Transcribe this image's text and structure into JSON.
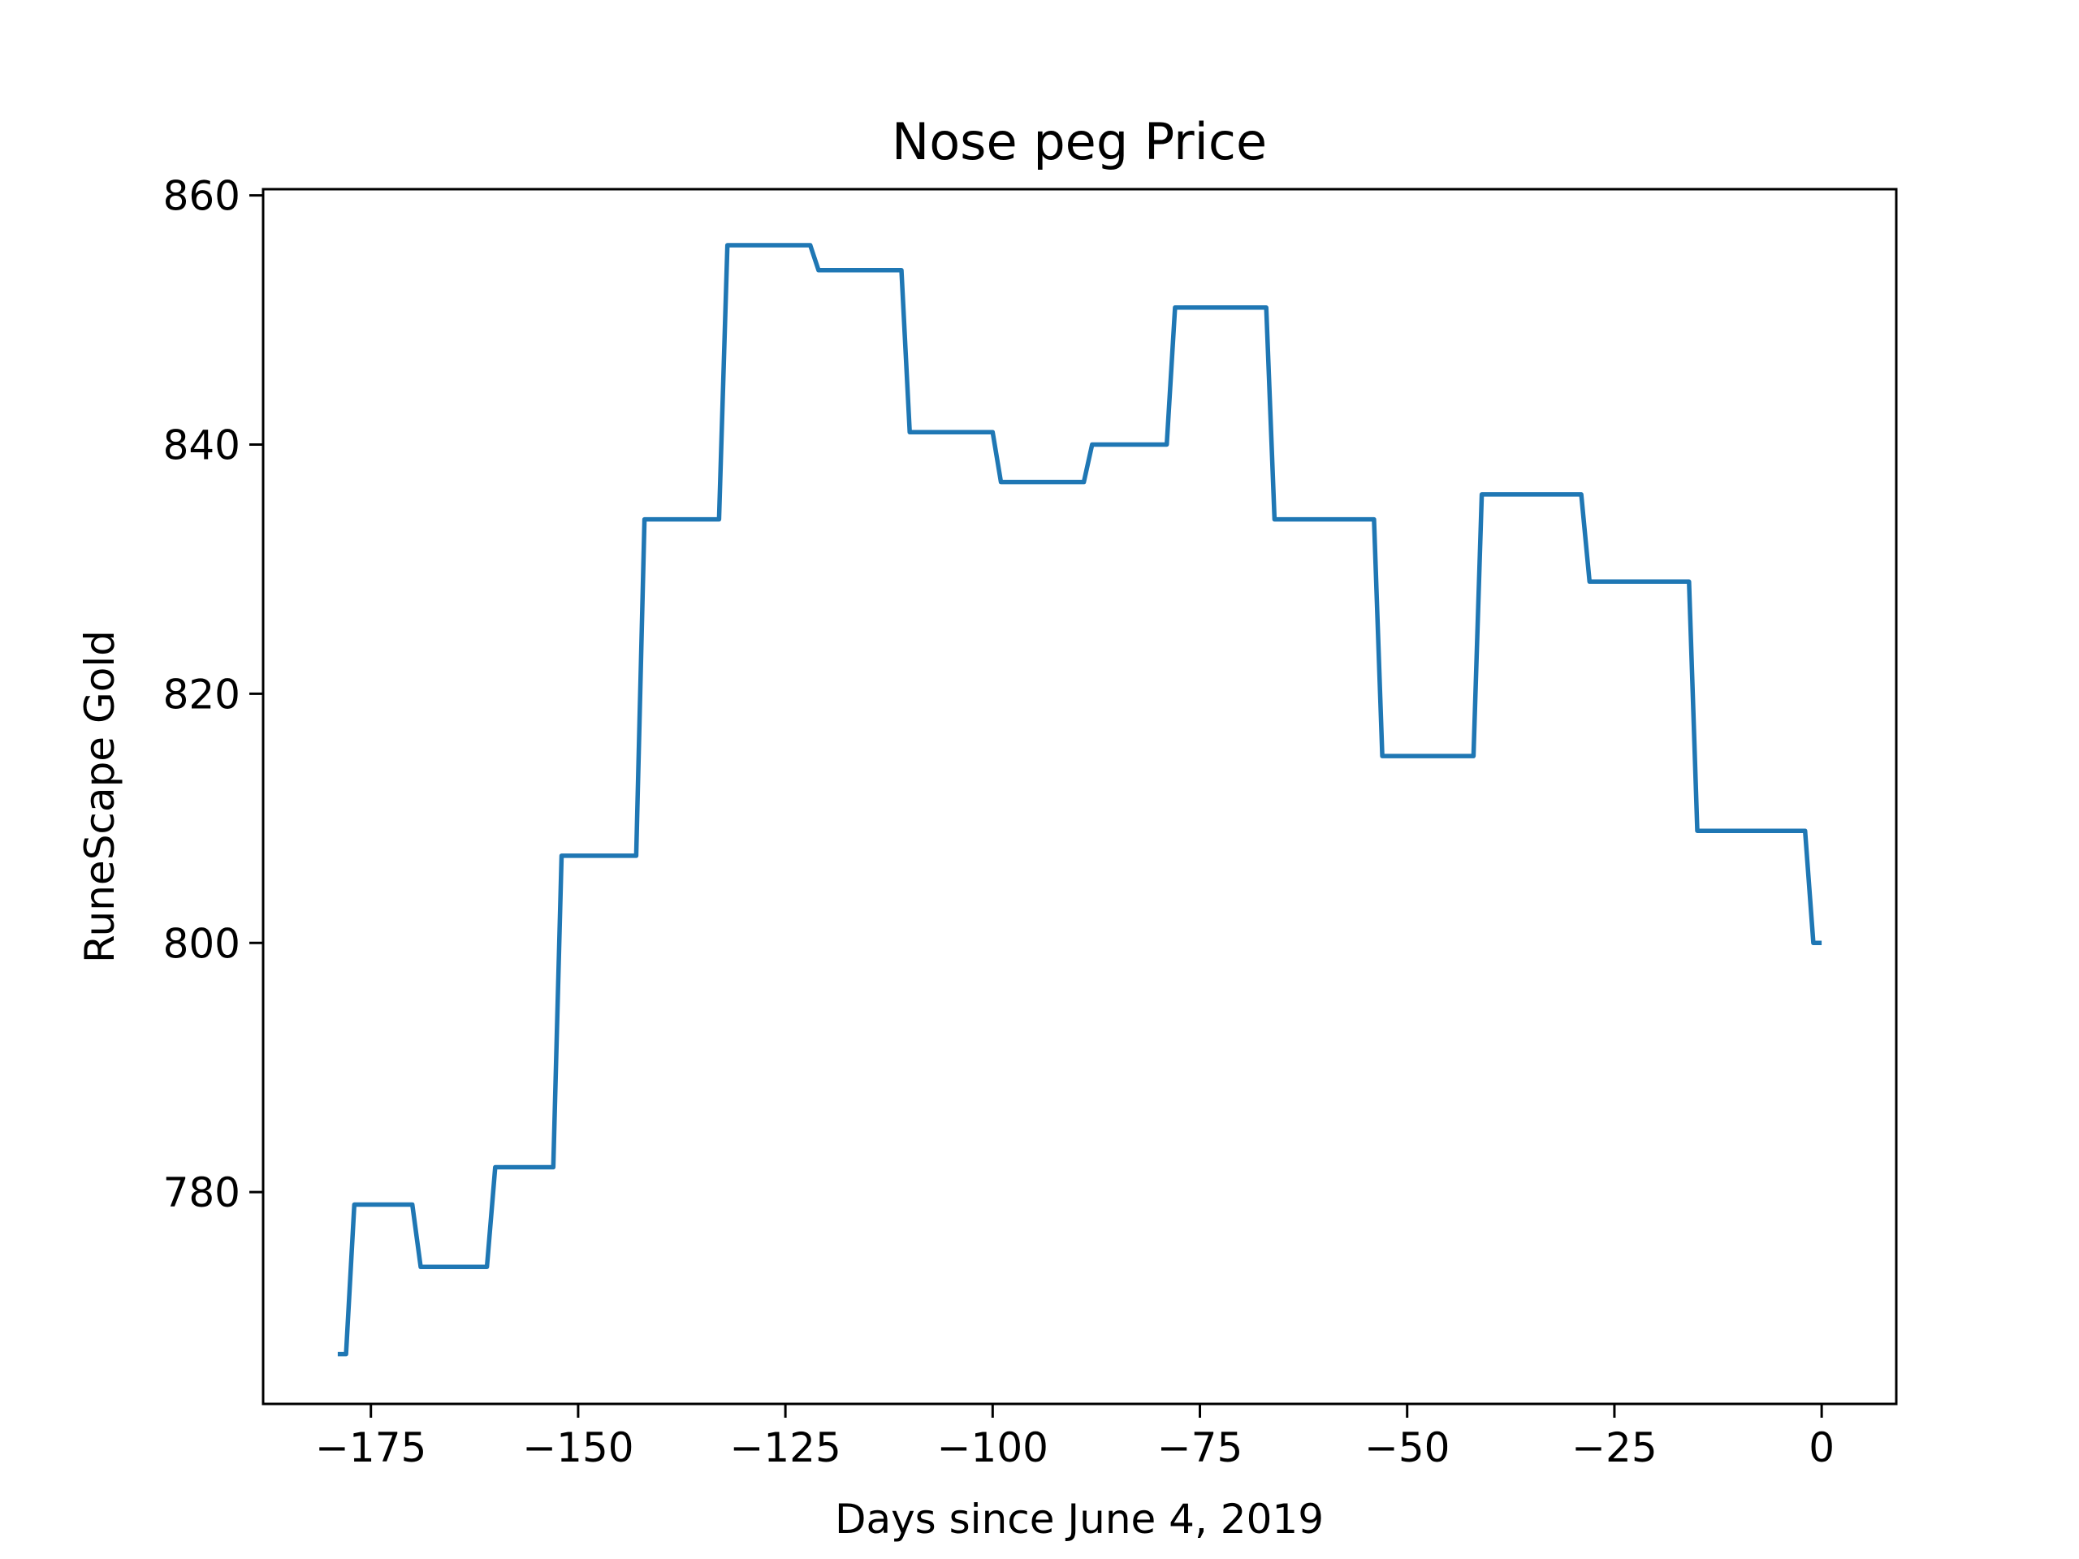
{
  "chart_data": {
    "type": "line",
    "title": "Nose peg Price",
    "xlabel": "Days since June 4, 2019",
    "ylabel": "RuneScape Gold",
    "xlim": [
      -188,
      9
    ],
    "ylim": [
      763,
      860.5
    ],
    "x_ticks": [
      -175,
      -150,
      -125,
      -100,
      -75,
      -50,
      -25,
      0
    ],
    "x_tick_labels": [
      "−175",
      "−150",
      "−125",
      "−100",
      "−75",
      "−50",
      "−25",
      "0"
    ],
    "y_ticks": [
      780,
      800,
      820,
      840,
      860
    ],
    "y_tick_labels": [
      "780",
      "800",
      "820",
      "840",
      "860"
    ],
    "grid": false,
    "legend": "none",
    "series": [
      {
        "color": "#1f77b4",
        "x": [
          -179,
          -178,
          -177,
          -170,
          -169,
          -161,
          -160,
          -153,
          -152,
          -143,
          -142,
          -133,
          -132,
          -122,
          -121,
          -111,
          -110,
          -100,
          -99,
          -89,
          -88,
          -79,
          -78,
          -67,
          -66,
          -54,
          -53,
          -42,
          -41,
          -29,
          -28,
          -16,
          -15,
          -2,
          -1,
          0
        ],
        "y": [
          767,
          767,
          779,
          779,
          774,
          774,
          782,
          782,
          807,
          807,
          834,
          834,
          856,
          856,
          854,
          854,
          841,
          841,
          837,
          837,
          840,
          840,
          851,
          851,
          834,
          834,
          815,
          815,
          836,
          836,
          829,
          829,
          809,
          809,
          800,
          800
        ]
      }
    ]
  }
}
